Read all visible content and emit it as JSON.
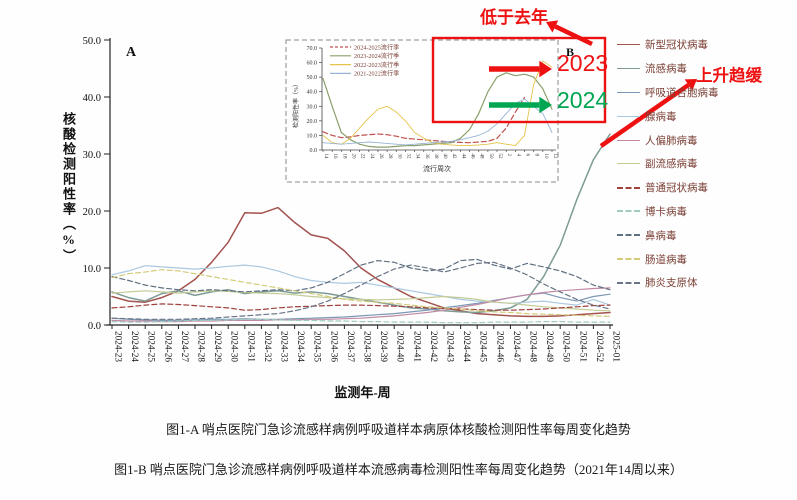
{
  "panel_a": {
    "label": "A",
    "y_axis_label": "核酸检测阳性率（%）",
    "x_axis_title": "监测年-周"
  },
  "panel_b": {
    "label": "B",
    "x_axis_title": "流行周次",
    "y_axis_label": "检测阳性率（%）"
  },
  "annotations": {
    "below_last_year": "低于去年",
    "year_2023": "2023",
    "year_2024": "2024",
    "rise_slowing": "上升趋缓",
    "red": "#ee1111",
    "green": "#00a651"
  },
  "captions": {
    "fig_a": "图1-A  哨点医院门急诊流感样病例呼吸道样本病原体核酸检测阳性率每周变化趋势",
    "fig_b": "图1-B 哨点医院门急诊流感样病例呼吸道样本流感病毒检测阳性率每周变化趋势（2021年14周以来）"
  },
  "chart_data": [
    {
      "id": "main",
      "type": "line",
      "title": "",
      "xlabel": "监测年-周",
      "ylabel": "核酸检测阳性率（%）",
      "ylim": [
        0,
        50
      ],
      "yticks": [
        "0.0",
        "10.0",
        "20.0",
        "30.0",
        "40.0",
        "50.0"
      ],
      "grid": false,
      "legend_position": "right",
      "categories": [
        "2024-23",
        "2024-24",
        "2024-25",
        "2024-26",
        "2024-27",
        "2024-28",
        "2024-29",
        "2024-30",
        "2024-31",
        "2024-32",
        "2024-33",
        "2024-34",
        "2024-35",
        "2024-36",
        "2024-37",
        "2024-38",
        "2024-39",
        "2024-40",
        "2024-41",
        "2024-42",
        "2024-43",
        "2024-44",
        "2024-45",
        "2024-46",
        "2024-47",
        "2024-48",
        "2024-49",
        "2024-50",
        "2024-51",
        "2024-52",
        "2025-01"
      ],
      "series": [
        {
          "name": "新型冠状病毒",
          "color": "#a3524e",
          "dash": false,
          "values": [
            5.0,
            4.2,
            4.0,
            4.8,
            6.0,
            8.0,
            11.0,
            14.5,
            19.7,
            19.6,
            20.6,
            18.0,
            15.8,
            15.2,
            13.0,
            10.0,
            8.0,
            6.5,
            5.0,
            4.0,
            3.0,
            2.5,
            2.0,
            1.8,
            1.6,
            1.5,
            1.5,
            1.6,
            1.8,
            2.0,
            2.2
          ]
        },
        {
          "name": "流感病毒",
          "color": "#7e9b96",
          "dash": false,
          "values": [
            5.8,
            4.8,
            4.2,
            5.5,
            6.0,
            5.2,
            5.8,
            6.2,
            5.5,
            5.8,
            6.0,
            5.6,
            5.8,
            5.5,
            5.0,
            4.5,
            4.0,
            3.5,
            3.0,
            2.8,
            2.5,
            2.3,
            2.2,
            2.5,
            3.0,
            4.5,
            8.5,
            14.0,
            22.0,
            29.0,
            33.5
          ]
        },
        {
          "name": "呼吸道合胞病毒",
          "color": "#7b97b5",
          "dash": false,
          "values": [
            1.2,
            1.0,
            0.9,
            0.8,
            0.8,
            0.9,
            1.0,
            1.0,
            1.1,
            1.0,
            1.0,
            1.1,
            1.2,
            1.3,
            1.4,
            1.6,
            1.8,
            2.0,
            2.3,
            2.6,
            3.0,
            3.4,
            3.8,
            4.3,
            4.8,
            5.3,
            5.6,
            4.8,
            4.2,
            5.0,
            5.4
          ]
        },
        {
          "name": "腺病毒",
          "color": "#aac8e0",
          "dash": false,
          "values": [
            8.8,
            9.5,
            10.4,
            10.2,
            10.0,
            9.8,
            10.0,
            10.3,
            10.5,
            10.2,
            9.5,
            8.5,
            7.8,
            7.5,
            7.3,
            7.5,
            7.0,
            6.5,
            6.0,
            5.5,
            5.0,
            4.5,
            4.2,
            4.0,
            3.8,
            4.0,
            4.2,
            3.8,
            3.5,
            4.5,
            3.5
          ]
        },
        {
          "name": "人偏肺病毒",
          "color": "#c189a4",
          "dash": false,
          "values": [
            0.8,
            0.7,
            0.7,
            0.6,
            0.6,
            0.7,
            0.7,
            0.8,
            0.8,
            0.8,
            0.9,
            0.9,
            1.0,
            1.0,
            1.1,
            1.2,
            1.4,
            1.6,
            1.9,
            2.2,
            2.6,
            3.1,
            3.6,
            4.2,
            4.8,
            5.3,
            5.7,
            6.0,
            6.2,
            6.4,
            6.5
          ]
        },
        {
          "name": "副流感病毒",
          "color": "#c3cc95",
          "dash": false,
          "values": [
            5.6,
            5.8,
            6.0,
            5.8,
            5.6,
            5.8,
            6.0,
            5.9,
            5.7,
            5.6,
            5.5,
            5.3,
            5.0,
            4.8,
            4.6,
            4.5,
            4.4,
            4.5,
            4.6,
            4.8,
            5.0,
            4.8,
            4.5,
            4.0,
            3.8,
            3.5,
            3.2,
            3.0,
            2.8,
            2.6,
            2.5
          ]
        },
        {
          "name": "普通冠状病毒",
          "color": "#9e403e",
          "dash": true,
          "values": [
            3.0,
            3.2,
            3.5,
            3.7,
            3.6,
            3.4,
            3.2,
            3.0,
            2.6,
            2.7,
            3.0,
            3.2,
            3.3,
            3.4,
            3.5,
            3.5,
            3.4,
            3.3,
            3.2,
            3.0,
            2.9,
            2.8,
            2.7,
            2.6,
            2.6,
            2.7,
            2.8,
            3.0,
            3.2,
            3.4,
            3.5
          ]
        },
        {
          "name": "博卡病毒",
          "color": "#9fcbc0",
          "dash": true,
          "values": [
            0.6,
            0.5,
            0.5,
            0.6,
            0.7,
            0.8,
            0.8,
            0.9,
            1.0,
            1.0,
            0.9,
            0.8,
            0.8,
            0.7,
            0.7,
            0.6,
            0.6,
            0.5,
            0.5,
            0.5,
            0.4,
            0.4,
            0.4,
            0.5,
            0.5,
            0.5,
            0.6,
            0.6,
            0.5,
            0.5,
            0.5
          ]
        },
        {
          "name": "鼻病毒",
          "color": "#5f7081",
          "dash": true,
          "values": [
            8.5,
            7.8,
            7.0,
            6.5,
            6.2,
            6.0,
            6.2,
            6.0,
            5.8,
            6.0,
            6.2,
            6.0,
            6.5,
            7.5,
            9.0,
            10.5,
            11.3,
            11.0,
            10.0,
            9.5,
            9.8,
            11.3,
            11.5,
            10.5,
            9.8,
            10.8,
            10.2,
            9.5,
            8.5,
            7.0,
            6.2
          ]
        },
        {
          "name": "肠道病毒",
          "color": "#d4cb7a",
          "dash": true,
          "values": [
            8.3,
            9.0,
            9.3,
            9.7,
            9.5,
            9.0,
            8.5,
            8.0,
            7.5,
            7.0,
            6.5,
            6.0,
            5.5,
            5.0,
            4.5,
            4.2,
            4.0,
            3.8,
            3.5,
            3.2,
            3.0,
            2.8,
            2.5,
            2.3,
            2.2,
            2.0,
            1.9,
            1.8,
            1.7,
            1.6,
            1.5
          ]
        },
        {
          "name": "肺炎支原体",
          "color": "#6a7586",
          "dash": true,
          "values": [
            1.2,
            1.1,
            1.0,
            1.0,
            1.0,
            1.1,
            1.2,
            1.4,
            1.6,
            1.8,
            2.0,
            2.5,
            3.2,
            4.2,
            5.5,
            7.0,
            8.5,
            9.8,
            10.5,
            10.0,
            9.3,
            10.0,
            10.8,
            11.0,
            10.0,
            8.8,
            7.2,
            5.8,
            4.5,
            3.5,
            2.8
          ]
        }
      ]
    },
    {
      "id": "inset",
      "type": "line",
      "title": "",
      "xlabel": "流行周次",
      "ylabel": "检测阳性率（%）",
      "ylim": [
        0,
        70
      ],
      "yticks": [
        "0.0",
        "10.0",
        "20.0",
        "30.0",
        "40.0",
        "50.0",
        "60.0",
        "70.0"
      ],
      "grid": false,
      "legend_position": "upper-left",
      "categories": [
        "14",
        "16",
        "18",
        "20",
        "22",
        "24",
        "26",
        "28",
        "30",
        "32",
        "34",
        "36",
        "38",
        "40",
        "42",
        "44",
        "46",
        "48",
        "50",
        "52",
        "2",
        "4",
        "6",
        "8",
        "10",
        "12"
      ],
      "series": [
        {
          "name": "2024-2025流行季",
          "color": "#c0504d",
          "dash": true,
          "values": [
            12.5,
            10,
            8.5,
            9,
            10,
            10.5,
            11,
            10.5,
            9.5,
            8,
            7.5,
            7,
            6.5,
            6,
            5.5,
            5.2,
            5,
            5.5,
            6,
            8,
            15,
            26,
            36,
            null,
            null,
            null
          ]
        },
        {
          "name": "2023-2024流行季",
          "color": "#8aa06a",
          "dash": false,
          "values": [
            49,
            30,
            12,
            7,
            4,
            2.5,
            2,
            2,
            2.5,
            3,
            3,
            3.5,
            4,
            4.5,
            5,
            8,
            14,
            25,
            40,
            50,
            53,
            51,
            52,
            50,
            42,
            28
          ]
        },
        {
          "name": "2022-2023流行季",
          "color": "#e6c34a",
          "dash": false,
          "values": [
            10,
            5,
            4,
            8,
            15,
            22,
            28,
            30,
            26,
            20,
            12,
            8,
            5,
            4,
            3.5,
            3,
            3,
            3.5,
            4,
            5,
            4,
            3,
            10,
            45,
            61,
            57
          ]
        },
        {
          "name": "2021-2022流行季",
          "color": "#98b4d8",
          "dash": false,
          "values": [
            5,
            4.5,
            4,
            4.5,
            5,
            5.5,
            5,
            4.5,
            4,
            3.5,
            4,
            4.5,
            5,
            5.5,
            6,
            7,
            8.5,
            10,
            13,
            18,
            25,
            32,
            35,
            30,
            25,
            12
          ]
        }
      ]
    }
  ]
}
